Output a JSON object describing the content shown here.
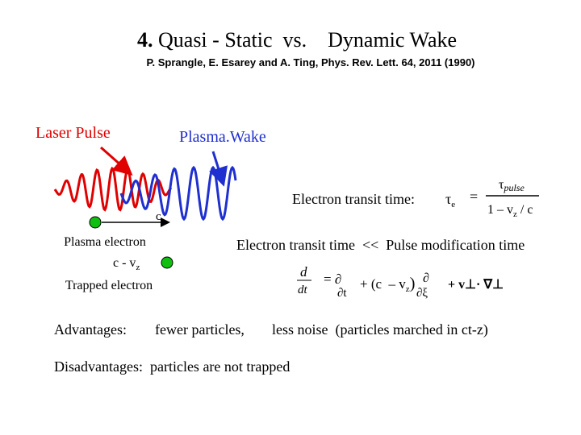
{
  "title_number": "4.",
  "title_text": "Quasi - Static  vs.    Dynamic Wake",
  "reference": "P. Sprangle, E. Esarey and A. Ting, Phys. Rev. Lett. 64, 2011 (1990)",
  "diagram": {
    "laser_label": "Laser Pulse",
    "wake_label": "Plasma.Wake",
    "speed_label": "c",
    "plasma_electron": "Plasma electron",
    "relative_speed": "c - v",
    "relative_speed_sub": "z",
    "trapped_electron": "Trapped electron"
  },
  "transit": {
    "label": "Electron transit time:",
    "tau": "τ",
    "tau_sub": "e",
    "equals": "=",
    "num": "τ",
    "num_sub": "pulse",
    "den_a": "1 – v",
    "den_sub": "z",
    "den_b": " / c"
  },
  "comparison": "Electron transit time  <<  Pulse modification time",
  "operator": {
    "d": "d",
    "dt": "dt",
    "eq_partial": "= ∂",
    "partial_t": "∂t",
    "plus_c": "+ (c  – v",
    "vz_sub": "z",
    "close": ")",
    "partial": "∂",
    "partial_xi": "∂ξ",
    "perp_term": "+ v⊥· ∇⊥"
  },
  "advantages": {
    "label": "Advantages:",
    "item1": "fewer particles,",
    "item2": "less noise  (particles marched in ct-z)"
  },
  "disadvantages": "Disadvantages:  particles are not trapped"
}
